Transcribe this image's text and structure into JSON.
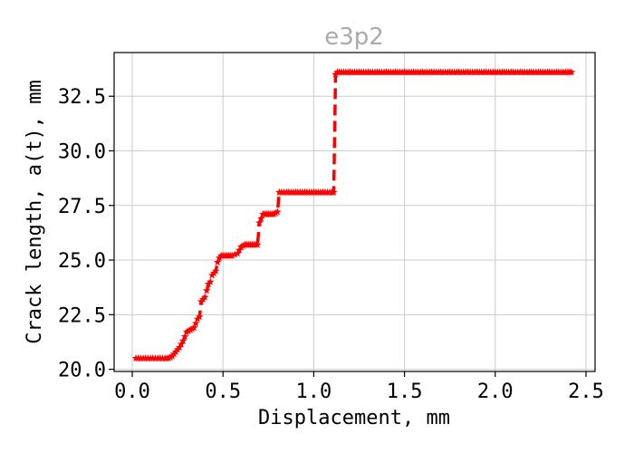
{
  "chart_data": {
    "type": "line",
    "title": "e3p2",
    "xlabel": "Displacement, mm",
    "ylabel": "Crack length, a(t), mm",
    "xlim": [
      -0.1,
      2.55
    ],
    "ylim": [
      19.9,
      34.5
    ],
    "xticks": [
      "0.0",
      "0.5",
      "1.0",
      "1.5",
      "2.0",
      "2.5"
    ],
    "yticks": [
      "20.0",
      "22.5",
      "25.0",
      "27.5",
      "30.0",
      "32.5"
    ],
    "grid": true,
    "colors": {
      "series": "#ff0000",
      "title": "#aaaaaa"
    },
    "series": [
      {
        "style": "dashed line with star markers",
        "x": [
          0.02,
          0.06,
          0.1,
          0.14,
          0.18,
          0.2,
          0.22,
          0.24,
          0.26,
          0.28,
          0.3,
          0.32,
          0.34,
          0.36,
          0.37,
          0.38,
          0.4,
          0.42,
          0.43,
          0.44,
          0.46,
          0.47,
          0.48,
          0.49,
          0.5,
          0.52,
          0.55,
          0.58,
          0.6,
          0.62,
          0.65,
          0.68,
          0.69,
          0.7,
          0.72,
          0.75,
          0.78,
          0.8,
          0.81,
          0.85,
          0.9,
          0.95,
          1.0,
          1.05,
          1.1,
          1.11,
          1.12,
          1.13,
          1.2,
          1.3,
          1.4,
          1.5,
          1.6,
          1.7,
          1.8,
          1.9,
          2.0,
          2.1,
          2.2,
          2.3,
          2.4,
          2.42
        ],
        "y": [
          20.5,
          20.5,
          20.5,
          20.5,
          20.5,
          20.5,
          20.6,
          20.8,
          21.0,
          21.3,
          21.7,
          21.8,
          21.9,
          22.3,
          22.4,
          23.1,
          23.3,
          23.9,
          24.0,
          24.3,
          24.5,
          24.9,
          25.1,
          25.2,
          25.2,
          25.2,
          25.2,
          25.3,
          25.6,
          25.7,
          25.7,
          25.7,
          25.7,
          26.7,
          27.1,
          27.1,
          27.1,
          27.2,
          28.1,
          28.1,
          28.1,
          28.1,
          28.1,
          28.1,
          28.1,
          28.1,
          33.5,
          33.6,
          33.6,
          33.6,
          33.6,
          33.6,
          33.6,
          33.6,
          33.6,
          33.6,
          33.6,
          33.6,
          33.6,
          33.6,
          33.6,
          33.6
        ]
      }
    ]
  }
}
